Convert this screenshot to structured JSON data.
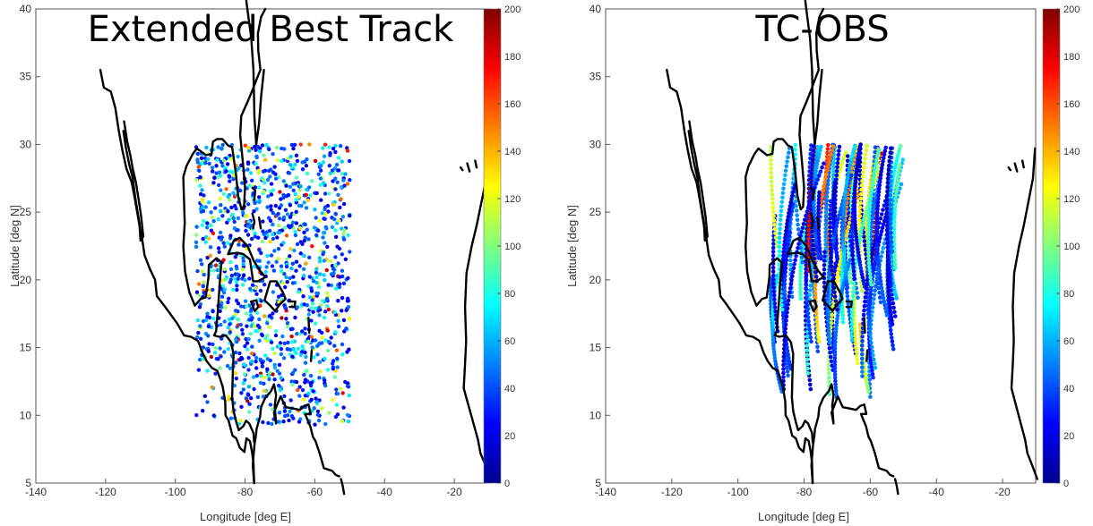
{
  "chart_data": [
    {
      "type": "scatter",
      "title": "Extended Best Track",
      "xlabel": "Longitude [deg E]",
      "ylabel": "Latitude [deg N]",
      "xlim": [
        -140,
        -10
      ],
      "ylim": [
        5,
        40
      ],
      "xticks": [
        "-140",
        "-120",
        "-100",
        "-80",
        "-60",
        "-40",
        "-20"
      ],
      "yticks": [
        "5",
        "10",
        "15",
        "20",
        "25",
        "30",
        "35",
        "40"
      ],
      "colorbar": {
        "range": [
          0,
          200
        ],
        "ticks": [
          "0",
          "20",
          "40",
          "60",
          "80",
          "100",
          "120",
          "140",
          "160",
          "180",
          "200"
        ],
        "colormap": "jet"
      },
      "points_domain": {
        "lon": [
          -94,
          -50
        ],
        "lat": [
          9.3,
          30
        ]
      },
      "style": "scattered points",
      "grid": false
    },
    {
      "type": "scatter",
      "title": "TC-OBS",
      "xlabel": "Longitude [deg E]",
      "ylabel": "Latitude [deg N]",
      "xlim": [
        -140,
        -10
      ],
      "ylim": [
        5,
        40
      ],
      "xticks": [
        "-140",
        "-120",
        "-100",
        "-80",
        "-60",
        "-40",
        "-20"
      ],
      "yticks": [
        "5",
        "10",
        "15",
        "20",
        "25",
        "30",
        "35",
        "40"
      ],
      "colorbar": {
        "range": [
          0,
          200
        ],
        "ticks": [
          "0",
          "20",
          "40",
          "60",
          "80",
          "100",
          "120",
          "140",
          "160",
          "180",
          "200"
        ],
        "colormap": "jet"
      },
      "points_domain": {
        "lon": [
          -94,
          -50
        ],
        "lat": [
          10.5,
          30
        ]
      },
      "style": "dense track lines",
      "grid": false
    }
  ],
  "coastline": [
    [
      [
        -121.5,
        35.5
      ],
      [
        -120.5,
        34.2
      ],
      [
        -118.5,
        33.9
      ],
      [
        -117.2,
        32.7
      ],
      [
        -116.2,
        31
      ],
      [
        -115.2,
        29.6
      ],
      [
        -114,
        28.2
      ],
      [
        -112.5,
        27.2
      ],
      [
        -111.6,
        26
      ],
      [
        -110.4,
        24.2
      ],
      [
        -109.5,
        23
      ],
      [
        -108.8,
        21.8
      ],
      [
        -107.3,
        20.8
      ],
      [
        -105.8,
        20
      ],
      [
        -105.3,
        18.8
      ],
      [
        -103.5,
        18.2
      ],
      [
        -101.5,
        17.5
      ],
      [
        -99.5,
        16.8
      ],
      [
        -97.5,
        15.9
      ],
      [
        -95.5,
        15.8
      ],
      [
        -93.5,
        15.5
      ],
      [
        -92.2,
        14.6
      ],
      [
        -91,
        14
      ],
      [
        -89.5,
        13.5
      ],
      [
        -88,
        13.3
      ],
      [
        -87.4,
        12.9
      ],
      [
        -86.4,
        12.1
      ],
      [
        -85.7,
        11
      ],
      [
        -85.6,
        10
      ],
      [
        -84.7,
        9.6
      ],
      [
        -83.6,
        8.5
      ],
      [
        -82.5,
        8.3
      ],
      [
        -81.5,
        7.6
      ],
      [
        -80.2,
        7.3
      ],
      [
        -79.6,
        8.3
      ],
      [
        -78.6,
        8.1
      ],
      [
        -78,
        7.3
      ],
      [
        -77.6,
        6.5
      ],
      [
        -77.4,
        5
      ]
    ],
    [
      [
        -77.4,
        5
      ],
      [
        -77.8,
        6.3
      ],
      [
        -77.3,
        7.8
      ],
      [
        -76.9,
        8.5
      ],
      [
        -76.7,
        9
      ],
      [
        -75.7,
        9.9
      ],
      [
        -75.4,
        10.6
      ],
      [
        -74.2,
        11.3
      ],
      [
        -72.5,
        11.8
      ],
      [
        -71.7,
        12.3
      ],
      [
        -71.1,
        11.5
      ],
      [
        -71.5,
        10.7
      ],
      [
        -71.1,
        9.4
      ],
      [
        -71.7,
        10.2
      ],
      [
        -69.8,
        11.4
      ],
      [
        -68.3,
        10.6
      ],
      [
        -66.2,
        10.5
      ],
      [
        -64.3,
        10.4
      ],
      [
        -63,
        10.7
      ],
      [
        -61.8,
        10.8
      ],
      [
        -61.2,
        10.1
      ],
      [
        -62.8,
        10.1
      ],
      [
        -61.3,
        9.2
      ],
      [
        -60.5,
        8.4
      ],
      [
        -59.8,
        8.1
      ],
      [
        -58.6,
        7.2
      ],
      [
        -57.4,
        6.1
      ],
      [
        -55,
        5.9
      ],
      [
        -54,
        5.6
      ],
      [
        -53,
        5.5
      ]
    ],
    [
      [
        -52.5,
        5.3
      ],
      [
        -52,
        4.8
      ],
      [
        -51.6,
        4.2
      ]
    ],
    [
      [
        -97.5,
        25.9
      ],
      [
        -97.7,
        27.6
      ],
      [
        -96.8,
        28.4
      ],
      [
        -95,
        29.3
      ],
      [
        -93.8,
        29.7
      ],
      [
        -91.2,
        29.2
      ],
      [
        -89.6,
        29.3
      ],
      [
        -89.2,
        30.2
      ],
      [
        -88,
        30.4
      ],
      [
        -86.5,
        30.4
      ],
      [
        -84.8,
        29.9
      ],
      [
        -83.7,
        29.8
      ],
      [
        -82.6,
        27.8
      ],
      [
        -82,
        26.2
      ],
      [
        -81,
        25.2
      ],
      [
        -80.3,
        25.4
      ],
      [
        -80,
        26.8
      ],
      [
        -80.6,
        28.6
      ],
      [
        -81.4,
        30.7
      ],
      [
        -81.1,
        32.1
      ],
      [
        -79.2,
        33.2
      ],
      [
        -77.9,
        34
      ],
      [
        -76.7,
        34.8
      ],
      [
        -75.6,
        35.5
      ],
      [
        -76.2,
        36.9
      ],
      [
        -76.3,
        38.2
      ],
      [
        -75.4,
        39.4
      ],
      [
        -74.2,
        40
      ]
    ],
    [
      [
        -97.5,
        25.9
      ],
      [
        -97.3,
        24.2
      ],
      [
        -97.7,
        22.5
      ],
      [
        -97.2,
        20.6
      ],
      [
        -96,
        19.1
      ],
      [
        -94.4,
        18.1
      ],
      [
        -92.7,
        18.6
      ],
      [
        -91.3,
        18.7
      ],
      [
        -90.5,
        20.2
      ],
      [
        -90.4,
        21.1
      ],
      [
        -88.2,
        21.6
      ],
      [
        -86.8,
        21.3
      ],
      [
        -87.3,
        19.6
      ],
      [
        -87.7,
        18.1
      ],
      [
        -88.3,
        16.2
      ],
      [
        -88.9,
        15.9
      ],
      [
        -87.4,
        15.8
      ],
      [
        -85.5,
        15.9
      ],
      [
        -84,
        15.4
      ],
      [
        -83.3,
        14.5
      ],
      [
        -83.5,
        13.2
      ],
      [
        -83.7,
        11.3
      ],
      [
        -83.3,
        10.3
      ],
      [
        -82.5,
        9.5
      ],
      [
        -81.8,
        8.9
      ],
      [
        -80.5,
        9.2
      ],
      [
        -79.7,
        9.6
      ],
      [
        -78.8,
        9.4
      ],
      [
        -77.6,
        8.7
      ],
      [
        -77.4,
        8
      ]
    ],
    [
      [
        -84.9,
        21.9
      ],
      [
        -83.2,
        22.9
      ],
      [
        -81.5,
        23.1
      ],
      [
        -79.3,
        22.5
      ],
      [
        -77.5,
        21.4
      ],
      [
        -75.8,
        20.7
      ],
      [
        -74.2,
        20.2
      ],
      [
        -76.3,
        19.9
      ],
      [
        -77.7,
        19.9
      ],
      [
        -78.6,
        21.5
      ],
      [
        -80.5,
        21.9
      ],
      [
        -82.2,
        22
      ],
      [
        -84.9,
        21.9
      ]
    ],
    [
      [
        -74.4,
        18.5
      ],
      [
        -72.8,
        19.9
      ],
      [
        -71,
        19.9
      ],
      [
        -69.2,
        19.1
      ],
      [
        -68.4,
        18.6
      ],
      [
        -70,
        18.2
      ],
      [
        -71.4,
        17.7
      ],
      [
        -72.8,
        18.1
      ],
      [
        -74.4,
        18.5
      ]
    ],
    [
      [
        -78.3,
        18.4
      ],
      [
        -76.8,
        18.5
      ],
      [
        -76.2,
        18
      ],
      [
        -77.2,
        17.7
      ],
      [
        -78.3,
        18.4
      ]
    ],
    [
      [
        -67.2,
        18.4
      ],
      [
        -65.6,
        18.4
      ],
      [
        -65.8,
        18
      ],
      [
        -67.2,
        18
      ]
    ],
    [
      [
        -61.8,
        17.2
      ],
      [
        -61.6,
        16.1
      ]
    ],
    [
      [
        -60.9,
        14.8
      ],
      [
        -61.1,
        14
      ]
    ],
    [
      [
        -77.9,
        26.8
      ],
      [
        -77.1,
        26.6
      ],
      [
        -77.3,
        25.9
      ]
    ],
    [
      [
        -77.9,
        24.9
      ],
      [
        -77.3,
        24.3
      ],
      [
        -77.7,
        23.8
      ]
    ],
    [
      [
        -76,
        24.6
      ],
      [
        -75.5,
        23.8
      ]
    ],
    [
      [
        -114.7,
        31.7
      ],
      [
        -113.8,
        30.2
      ],
      [
        -112.9,
        29.2
      ],
      [
        -112.2,
        28.2
      ],
      [
        -111.3,
        27.2
      ],
      [
        -110.5,
        25.9
      ],
      [
        -109.8,
        24.7
      ],
      [
        -109.2,
        23.2
      ],
      [
        -110,
        22.9
      ],
      [
        -110.3,
        24.2
      ],
      [
        -111.5,
        26.1
      ],
      [
        -112.2,
        27.5
      ],
      [
        -113.2,
        28.5
      ],
      [
        -114.2,
        29.8
      ],
      [
        -114.9,
        31
      ]
    ],
    [
      [
        -79.6,
        51
      ],
      [
        -79.9,
        49
      ],
      [
        -80.4,
        47.5
      ],
      [
        -80.7,
        45.5
      ],
      [
        -80.2,
        43
      ],
      [
        -79.6,
        40.5
      ],
      [
        -78.2,
        37.8
      ],
      [
        -77.6,
        35.5
      ],
      [
        -77.3,
        32
      ],
      [
        -76.8,
        30
      ]
    ],
    [
      [
        -76.8,
        30
      ],
      [
        -76,
        31.5
      ],
      [
        -75.4,
        33.5
      ],
      [
        -74.6,
        35.5
      ]
    ],
    [
      [
        -10.2,
        29.7
      ],
      [
        -10.8,
        27.5
      ],
      [
        -12,
        26
      ],
      [
        -13.6,
        24
      ],
      [
        -15,
        22.5
      ],
      [
        -16.5,
        20.5
      ],
      [
        -16.9,
        18
      ],
      [
        -16.6,
        15.5
      ],
      [
        -16.9,
        13.8
      ],
      [
        -17.3,
        12
      ],
      [
        -16,
        10.8
      ],
      [
        -14.6,
        9.5
      ],
      [
        -13.2,
        8.2
      ],
      [
        -12.5,
        7.2
      ],
      [
        -11.2,
        6.4
      ],
      [
        -9.5,
        5.3
      ]
    ],
    [
      [
        -18.2,
        28.3
      ],
      [
        -17.6,
        28.1
      ]
    ],
    [
      [
        -16.3,
        28.6
      ],
      [
        -15.6,
        28
      ]
    ],
    [
      [
        -14,
        28.8
      ],
      [
        -13.6,
        28.3
      ]
    ]
  ]
}
